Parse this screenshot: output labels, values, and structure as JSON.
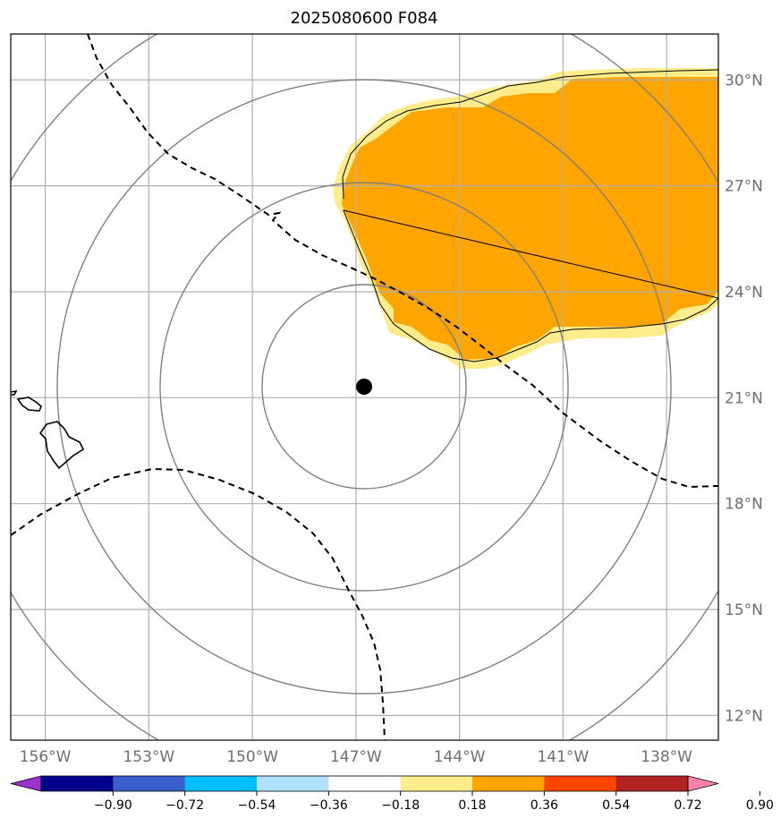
{
  "title": "2025080600 F084",
  "map": {
    "lon_range": [
      -157,
      -136.5
    ],
    "lat_range": [
      11.3,
      31.3
    ],
    "lon_ticks": [
      -156,
      -153,
      -150,
      -147,
      -144,
      -141,
      -138
    ],
    "lat_ticks": [
      12,
      15,
      18,
      21,
      24,
      27,
      30
    ],
    "lon_labels": [
      "156°W",
      "153°W",
      "150°W",
      "147°W",
      "144°W",
      "141°W",
      "138°W"
    ],
    "lat_labels": [
      "12°N",
      "15°N",
      "18°N",
      "21°N",
      "24°N",
      "27°N",
      "30°N"
    ],
    "storm_center": {
      "lon": -146.9,
      "lat": 21.3
    },
    "range_rings_count": 4,
    "gridlines": true
  },
  "colorbar": {
    "tick_labels": [
      "−0.90",
      "−0.72",
      "−0.54",
      "−0.36",
      "−0.18",
      "0.18",
      "0.36",
      "0.54",
      "0.72",
      "0.90"
    ],
    "colors": [
      "#9932cc",
      "#00008b",
      "#3a5fcd",
      "#00bfff",
      "#b0e2ff",
      "#ffffff",
      "#ffec8b",
      "#ffa500",
      "#ff4500",
      "#b22222",
      "#ff82ab"
    ],
    "extend": "both"
  },
  "colors": {
    "fill_low": "#ffec8b",
    "fill_mid": "#ffa500",
    "grid": "#b0b0b0",
    "rings": "#808080"
  }
}
